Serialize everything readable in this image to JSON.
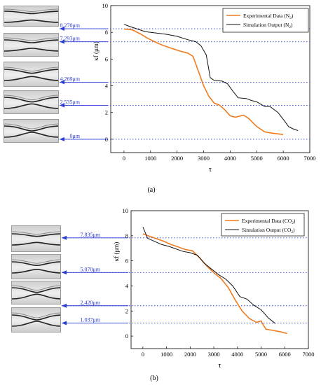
{
  "panels": [
    {
      "caption": "(a)",
      "chart_data": {
        "type": "line",
        "xlabel": "τ",
        "ylabel": "κf (μm)",
        "xlim": [
          -500,
          7000
        ],
        "ylim": [
          -1,
          10
        ],
        "xticks": [
          0,
          1000,
          2000,
          3000,
          4000,
          5000,
          6000,
          7000
        ],
        "yticks": [
          0,
          2,
          4,
          6,
          8,
          10
        ],
        "legend": "top-right",
        "series": [
          {
            "name": "Experimental Data (N2)",
            "color": "#f07b1e",
            "x": [
              0,
              300,
              600,
              900,
              1200,
              1500,
              1800,
              2100,
              2400,
              2600,
              2800,
              3000,
              3200,
              3400,
              3600,
              3800,
              4000,
              4200,
              4500,
              4700,
              5000,
              5300,
              5600,
              6000
            ],
            "y": [
              8.25,
              8.2,
              7.9,
              7.55,
              7.25,
              7.0,
              6.8,
              6.6,
              6.45,
              6.2,
              5.1,
              4.0,
              3.2,
              2.7,
              2.55,
              2.2,
              1.75,
              1.65,
              1.8,
              1.55,
              0.95,
              0.55,
              0.45,
              0.35
            ]
          },
          {
            "name": "Simulation Output (N2)",
            "color": "#111111",
            "x": [
              0,
              200,
              500,
              800,
              1200,
              1600,
              2000,
              2400,
              2700,
              2900,
              3100,
              3250,
              3400,
              3700,
              3900,
              4100,
              4300,
              4600,
              4800,
              5000,
              5300,
              5500,
              5800,
              6000,
              6200,
              6400,
              6550
            ],
            "y": [
              8.6,
              8.45,
              8.25,
              8.05,
              7.95,
              7.85,
              7.7,
              7.45,
              7.3,
              7.0,
              6.3,
              4.6,
              4.4,
              4.35,
              4.15,
              3.6,
              3.1,
              3.05,
              2.9,
              2.8,
              2.45,
              2.45,
              2.0,
              1.5,
              0.95,
              0.75,
              0.65
            ]
          }
        ],
        "reference_lines": [
          8.27,
          7.293,
          4.269,
          2.535,
          0
        ],
        "reference_labels": [
          "8.270μm",
          "7.293μm",
          "4.269μm",
          "2.535μm",
          "0μm"
        ]
      }
    },
    {
      "caption": "(b)",
      "chart_data": {
        "type": "line",
        "xlabel": "τ",
        "ylabel": "κf (μm)",
        "xlim": [
          -500,
          7000
        ],
        "ylim": [
          -1,
          10
        ],
        "xticks": [
          0,
          1000,
          2000,
          3000,
          4000,
          5000,
          6000,
          7000
        ],
        "yticks": [
          0,
          2,
          4,
          6,
          8,
          10
        ],
        "legend": "top-right",
        "series": [
          {
            "name": "Experimental Data (CO2)",
            "color": "#f07b1e",
            "x": [
              0,
              300,
              600,
              900,
              1200,
              1500,
              1800,
              2100,
              2400,
              2700,
              3000,
              3300,
              3600,
              3900,
              4200,
              4500,
              4800,
              5000,
              5200,
              5500,
              5800,
              6100
            ],
            "y": [
              8.15,
              7.95,
              7.75,
              7.55,
              7.3,
              7.1,
              6.9,
              6.8,
              6.25,
              5.6,
              5.05,
              4.6,
              3.9,
              2.9,
              2.0,
              1.4,
              1.1,
              1.2,
              0.55,
              0.45,
              0.35,
              0.2
            ]
          },
          {
            "name": "Simulation Output (CO2)",
            "color": "#111111",
            "x": [
              0,
              200,
              500,
              800,
              1100,
              1400,
              1700,
              2000,
              2300,
              2600,
              2900,
              3200,
              3500,
              3800,
              4100,
              4400,
              4700,
              5000,
              5300,
              5600
            ],
            "y": [
              8.7,
              7.8,
              7.55,
              7.3,
              7.15,
              6.95,
              6.75,
              6.65,
              6.45,
              5.8,
              5.35,
              4.9,
              4.55,
              4.0,
              3.15,
              2.95,
              2.45,
              2.1,
              1.45,
              1.0
            ]
          }
        ],
        "reference_lines": [
          7.835,
          5.07,
          2.42,
          1.037
        ],
        "reference_labels": [
          "7.835μm",
          "5.070μm",
          "2.420μm",
          "1.037μm"
        ]
      }
    }
  ]
}
